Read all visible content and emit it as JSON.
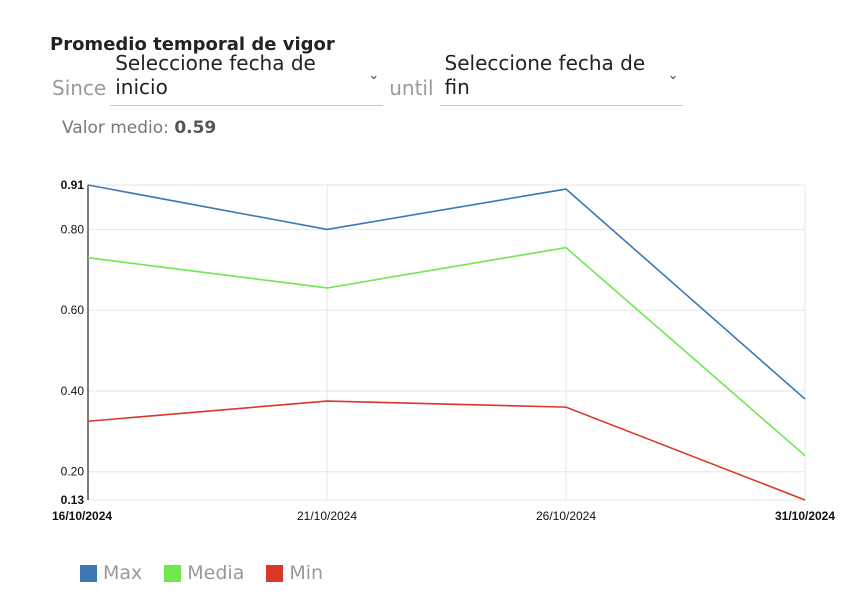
{
  "header": {
    "title": "Promedio temporal de vigor",
    "since_label": "Since",
    "start_select": "Seleccione fecha de inicio",
    "until_label": "until",
    "end_select": "Seleccione fecha de fin",
    "avg_label": "Valor medio:",
    "avg_value": "0.59"
  },
  "colors": {
    "max": "#3d78b0",
    "media": "#6ee84e",
    "min": "#d9372a",
    "grid": "#e6e6e6"
  },
  "chart_data": {
    "type": "line",
    "categories": [
      "16/10/2024",
      "21/10/2024",
      "26/10/2024",
      "31/10/2024"
    ],
    "series": [
      {
        "name": "Max",
        "values": [
          0.91,
          0.8,
          0.9,
          0.38
        ]
      },
      {
        "name": "Media",
        "values": [
          0.73,
          0.655,
          0.755,
          0.24
        ]
      },
      {
        "name": "Min",
        "values": [
          0.325,
          0.375,
          0.36,
          0.13
        ]
      }
    ],
    "yticks": [
      "0.13",
      "0.20",
      "0.40",
      "0.60",
      "0.80",
      "0.91"
    ],
    "ylim": [
      0.13,
      0.91
    ],
    "grid": true,
    "legend": "bottom-left"
  }
}
